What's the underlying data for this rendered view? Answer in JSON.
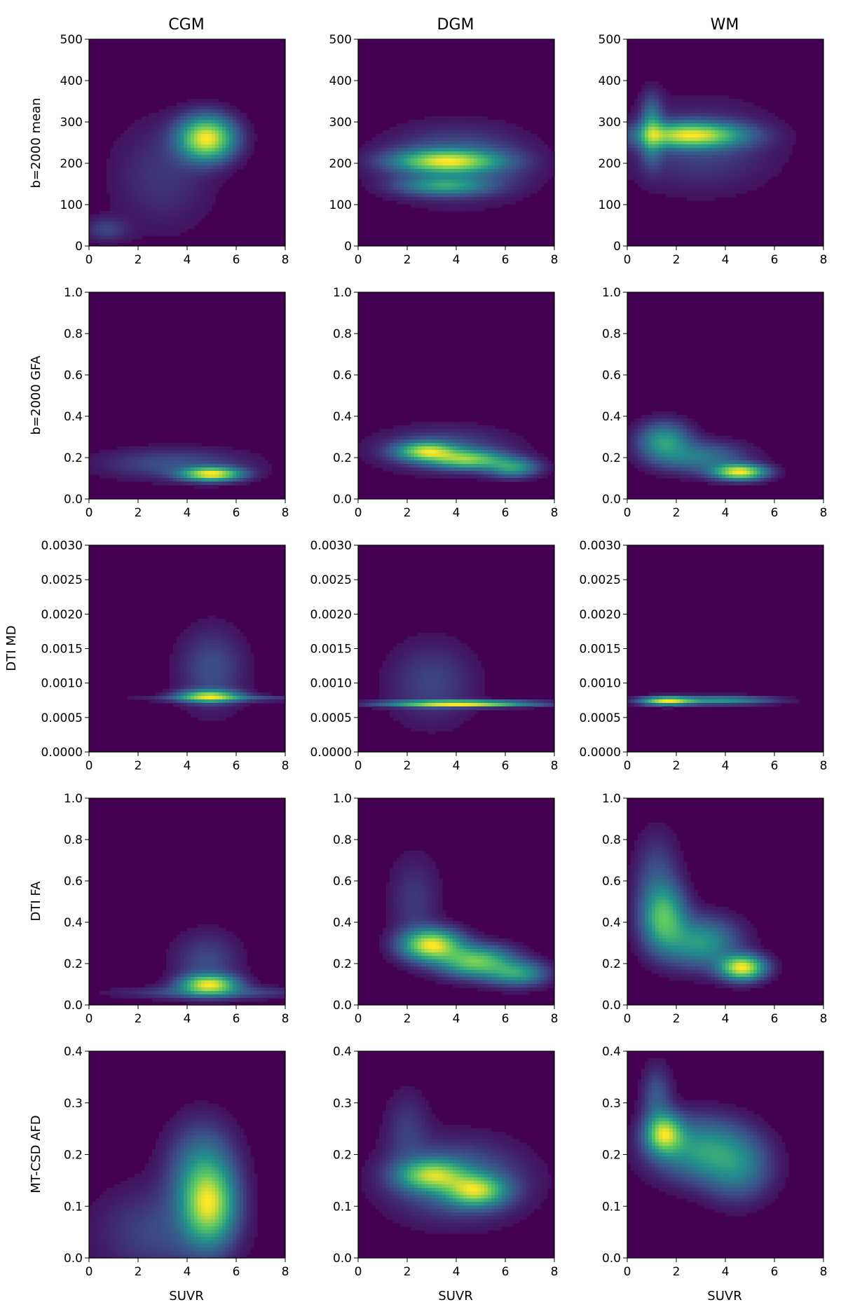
{
  "figure": {
    "column_titles": [
      "CGM",
      "DGM",
      "WM"
    ],
    "row_ylabels": [
      "b=2000 mean",
      "b=2000 GFA",
      "DTI MD",
      "DTI FA",
      "MT-CSD AFD"
    ],
    "xlabel": "SUVR",
    "colormap": [
      "#440154",
      "#3b528b",
      "#21918c",
      "#5ec962",
      "#fde725"
    ],
    "background_color": "#440154"
  },
  "chart_data": [
    {
      "type": "heatmap",
      "column": "CGM",
      "ylabel": "b=2000 mean",
      "xlim": [
        0,
        8
      ],
      "ylim": [
        0,
        500
      ],
      "xticks": [
        "0",
        "2",
        "4",
        "6",
        "8"
      ],
      "yticks": [
        "0",
        "100",
        "200",
        "300",
        "400",
        "500"
      ],
      "density_peaks": [
        {
          "x": 4.8,
          "y": 260,
          "sx": 0.75,
          "sy": 35,
          "w": 1.0
        },
        {
          "x": 3.0,
          "y": 170,
          "sx": 1.4,
          "sy": 90,
          "w": 0.12
        },
        {
          "x": 0.7,
          "y": 40,
          "sx": 0.6,
          "sy": 20,
          "w": 0.15
        }
      ]
    },
    {
      "type": "heatmap",
      "column": "DGM",
      "ylabel": "b=2000 mean",
      "xlim": [
        0,
        8
      ],
      "ylim": [
        0,
        500
      ],
      "xticks": [
        "0",
        "2",
        "4",
        "6",
        "8"
      ],
      "yticks": [
        "0",
        "100",
        "200",
        "300",
        "400",
        "500"
      ],
      "density_peaks": [
        {
          "x": 3.6,
          "y": 205,
          "sx": 1.4,
          "sy": 18,
          "w": 0.95
        },
        {
          "x": 3.5,
          "y": 145,
          "sx": 1.2,
          "sy": 15,
          "w": 0.5
        },
        {
          "x": 4.0,
          "y": 200,
          "sx": 1.9,
          "sy": 55,
          "w": 0.35
        }
      ]
    },
    {
      "type": "heatmap",
      "column": "WM",
      "ylabel": "b=2000 mean",
      "xlim": [
        0,
        8
      ],
      "ylim": [
        0,
        500
      ],
      "xticks": [
        "0",
        "2",
        "4",
        "6",
        "8"
      ],
      "yticks": [
        "0",
        "100",
        "200",
        "300",
        "400",
        "500"
      ],
      "density_peaks": [
        {
          "x": 2.6,
          "y": 268,
          "sx": 1.4,
          "sy": 20,
          "w": 1.0
        },
        {
          "x": 1.0,
          "y": 280,
          "sx": 0.3,
          "sy": 50,
          "w": 0.5
        },
        {
          "x": 3.0,
          "y": 240,
          "sx": 2.0,
          "sy": 70,
          "w": 0.18
        }
      ]
    },
    {
      "type": "heatmap",
      "column": "CGM",
      "ylabel": "b=2000 GFA",
      "xlim": [
        0,
        8
      ],
      "ylim": [
        0,
        1.0
      ],
      "xticks": [
        "0",
        "2",
        "4",
        "6",
        "8"
      ],
      "yticks": [
        "0.0",
        "0.2",
        "0.4",
        "0.6",
        "0.8",
        "1.0"
      ],
      "density_peaks": [
        {
          "x": 5.0,
          "y": 0.12,
          "sx": 0.8,
          "sy": 0.022,
          "w": 1.0
        },
        {
          "x": 3.5,
          "y": 0.17,
          "sx": 2.0,
          "sy": 0.05,
          "w": 0.2
        }
      ]
    },
    {
      "type": "heatmap",
      "column": "DGM",
      "ylabel": "b=2000 GFA",
      "xlim": [
        0,
        8
      ],
      "ylim": [
        0,
        1.0
      ],
      "xticks": [
        "0",
        "2",
        "4",
        "6",
        "8"
      ],
      "yticks": [
        "0.0",
        "0.2",
        "0.4",
        "0.6",
        "0.8",
        "1.0"
      ],
      "density_peaks": [
        {
          "x": 2.8,
          "y": 0.23,
          "sx": 0.8,
          "sy": 0.03,
          "w": 0.95
        },
        {
          "x": 4.5,
          "y": 0.19,
          "sx": 1.0,
          "sy": 0.03,
          "w": 0.85
        },
        {
          "x": 6.3,
          "y": 0.15,
          "sx": 0.7,
          "sy": 0.03,
          "w": 0.6
        },
        {
          "x": 3.5,
          "y": 0.24,
          "sx": 1.8,
          "sy": 0.07,
          "w": 0.25
        }
      ]
    },
    {
      "type": "heatmap",
      "column": "WM",
      "ylabel": "b=2000 GFA",
      "xlim": [
        0,
        8
      ],
      "ylim": [
        0,
        1.0
      ],
      "xticks": [
        "0",
        "2",
        "4",
        "6",
        "8"
      ],
      "yticks": [
        "0.0",
        "0.2",
        "0.4",
        "0.6",
        "0.8",
        "1.0"
      ],
      "density_peaks": [
        {
          "x": 4.6,
          "y": 0.13,
          "sx": 0.7,
          "sy": 0.025,
          "w": 1.0
        },
        {
          "x": 1.5,
          "y": 0.28,
          "sx": 0.7,
          "sy": 0.06,
          "w": 0.5
        },
        {
          "x": 3.0,
          "y": 0.2,
          "sx": 1.2,
          "sy": 0.05,
          "w": 0.35
        }
      ]
    },
    {
      "type": "heatmap",
      "column": "CGM",
      "ylabel": "DTI MD",
      "xlim": [
        0,
        8
      ],
      "ylim": [
        0,
        0.003
      ],
      "xticks": [
        "0",
        "2",
        "4",
        "6",
        "8"
      ],
      "yticks": [
        "0.0000",
        "0.0005",
        "0.0010",
        "0.0015",
        "0.0020",
        "0.0025",
        "0.0030"
      ],
      "density_peaks": [
        {
          "x": 4.9,
          "y": 0.00081,
          "sx": 0.8,
          "sy": 6e-05,
          "w": 1.0
        },
        {
          "x": 5.0,
          "y": 0.0012,
          "sx": 0.9,
          "sy": 0.0004,
          "w": 0.25
        },
        {
          "x": 5.5,
          "y": 0.00078,
          "sx": 2.0,
          "sy": 3e-05,
          "w": 0.3
        }
      ]
    },
    {
      "type": "heatmap",
      "column": "DGM",
      "ylabel": "DTI MD",
      "xlim": [
        0,
        8
      ],
      "ylim": [
        0,
        0.003
      ],
      "xticks": [
        "0",
        "2",
        "4",
        "6",
        "8"
      ],
      "yticks": [
        "0.0000",
        "0.0005",
        "0.0010",
        "0.0015",
        "0.0020",
        "0.0025",
        "0.0030"
      ],
      "density_peaks": [
        {
          "x": 4.2,
          "y": 0.0007,
          "sx": 1.9,
          "sy": 3e-05,
          "w": 1.0
        },
        {
          "x": 3.0,
          "y": 0.001,
          "sx": 1.2,
          "sy": 0.0004,
          "w": 0.15
        }
      ]
    },
    {
      "type": "heatmap",
      "column": "WM",
      "ylabel": "DTI MD",
      "xlim": [
        0,
        8
      ],
      "ylim": [
        0,
        0.003
      ],
      "xticks": [
        "0",
        "2",
        "4",
        "6",
        "8"
      ],
      "yticks": [
        "0.0000",
        "0.0005",
        "0.0010",
        "0.0015",
        "0.0020",
        "0.0025",
        "0.0030"
      ],
      "density_peaks": [
        {
          "x": 1.6,
          "y": 0.00074,
          "sx": 0.7,
          "sy": 4e-05,
          "w": 1.0
        },
        {
          "x": 3.8,
          "y": 0.00075,
          "sx": 1.4,
          "sy": 4e-05,
          "w": 0.55
        }
      ]
    },
    {
      "type": "heatmap",
      "column": "CGM",
      "ylabel": "DTI FA",
      "xlim": [
        0,
        8
      ],
      "ylim": [
        0,
        1.0
      ],
      "xticks": [
        "0",
        "2",
        "4",
        "6",
        "8"
      ],
      "yticks": [
        "0.0",
        "0.2",
        "0.4",
        "0.6",
        "0.8",
        "1.0"
      ],
      "density_peaks": [
        {
          "x": 4.9,
          "y": 0.1,
          "sx": 0.75,
          "sy": 0.03,
          "w": 1.0
        },
        {
          "x": 4.8,
          "y": 0.2,
          "sx": 0.9,
          "sy": 0.1,
          "w": 0.2
        },
        {
          "x": 5.0,
          "y": 0.06,
          "sx": 2.3,
          "sy": 0.02,
          "w": 0.25
        }
      ]
    },
    {
      "type": "heatmap",
      "column": "DGM",
      "ylabel": "DTI FA",
      "xlim": [
        0,
        8
      ],
      "ylim": [
        0,
        1.0
      ],
      "xticks": [
        "0",
        "2",
        "4",
        "6",
        "8"
      ],
      "yticks": [
        "0.0",
        "0.2",
        "0.4",
        "0.6",
        "0.8",
        "1.0"
      ],
      "density_peaks": [
        {
          "x": 3.0,
          "y": 0.29,
          "sx": 0.8,
          "sy": 0.05,
          "w": 0.9
        },
        {
          "x": 4.8,
          "y": 0.21,
          "sx": 1.0,
          "sy": 0.05,
          "w": 0.7
        },
        {
          "x": 6.5,
          "y": 0.15,
          "sx": 0.8,
          "sy": 0.04,
          "w": 0.45
        },
        {
          "x": 2.3,
          "y": 0.5,
          "sx": 0.7,
          "sy": 0.15,
          "w": 0.12
        }
      ]
    },
    {
      "type": "heatmap",
      "column": "WM",
      "ylabel": "DTI FA",
      "xlim": [
        0,
        8
      ],
      "ylim": [
        0,
        1.0
      ],
      "xticks": [
        "0",
        "2",
        "4",
        "6",
        "8"
      ],
      "yticks": [
        "0.0",
        "0.2",
        "0.4",
        "0.6",
        "0.8",
        "1.0"
      ],
      "density_peaks": [
        {
          "x": 4.7,
          "y": 0.18,
          "sx": 0.6,
          "sy": 0.04,
          "w": 0.9
        },
        {
          "x": 1.5,
          "y": 0.42,
          "sx": 0.6,
          "sy": 0.1,
          "w": 0.55
        },
        {
          "x": 3.0,
          "y": 0.3,
          "sx": 1.0,
          "sy": 0.08,
          "w": 0.45
        },
        {
          "x": 1.2,
          "y": 0.6,
          "sx": 0.6,
          "sy": 0.15,
          "w": 0.18
        }
      ]
    },
    {
      "type": "heatmap",
      "column": "CGM",
      "ylabel": "MT-CSD AFD",
      "xlim": [
        0,
        8
      ],
      "ylim": [
        0,
        0.4
      ],
      "xticks": [
        "0",
        "2",
        "4",
        "6",
        "8"
      ],
      "yticks": [
        "0.0",
        "0.1",
        "0.2",
        "0.3",
        "0.4"
      ],
      "density_peaks": [
        {
          "x": 4.9,
          "y": 0.1,
          "sx": 0.7,
          "sy": 0.05,
          "w": 0.55
        },
        {
          "x": 4.6,
          "y": 0.17,
          "sx": 0.9,
          "sy": 0.06,
          "w": 0.25
        },
        {
          "x": 3.0,
          "y": 0.05,
          "sx": 1.8,
          "sy": 0.06,
          "w": 0.12
        }
      ]
    },
    {
      "type": "heatmap",
      "column": "DGM",
      "ylabel": "MT-CSD AFD",
      "xlim": [
        0,
        8
      ],
      "ylim": [
        0,
        0.4
      ],
      "xticks": [
        "0",
        "2",
        "4",
        "6",
        "8"
      ],
      "yticks": [
        "0.0",
        "0.1",
        "0.2",
        "0.3",
        "0.4"
      ],
      "density_peaks": [
        {
          "x": 3.0,
          "y": 0.16,
          "sx": 0.9,
          "sy": 0.02,
          "w": 0.85
        },
        {
          "x": 4.8,
          "y": 0.13,
          "sx": 0.8,
          "sy": 0.02,
          "w": 0.9
        },
        {
          "x": 4.0,
          "y": 0.15,
          "sx": 1.8,
          "sy": 0.05,
          "w": 0.35
        },
        {
          "x": 2.0,
          "y": 0.25,
          "sx": 0.6,
          "sy": 0.05,
          "w": 0.15
        }
      ]
    },
    {
      "type": "heatmap",
      "column": "WM",
      "ylabel": "MT-CSD AFD",
      "xlim": [
        0,
        8
      ],
      "ylim": [
        0,
        0.4
      ],
      "xticks": [
        "0",
        "2",
        "4",
        "6",
        "8"
      ],
      "yticks": [
        "0.0",
        "0.1",
        "0.2",
        "0.3",
        "0.4"
      ],
      "density_peaks": [
        {
          "x": 1.5,
          "y": 0.24,
          "sx": 0.5,
          "sy": 0.025,
          "w": 0.9
        },
        {
          "x": 3.0,
          "y": 0.21,
          "sx": 1.3,
          "sy": 0.04,
          "w": 0.55
        },
        {
          "x": 4.5,
          "y": 0.17,
          "sx": 0.9,
          "sy": 0.04,
          "w": 0.35
        },
        {
          "x": 1.2,
          "y": 0.31,
          "sx": 0.4,
          "sy": 0.04,
          "w": 0.25
        }
      ]
    }
  ]
}
